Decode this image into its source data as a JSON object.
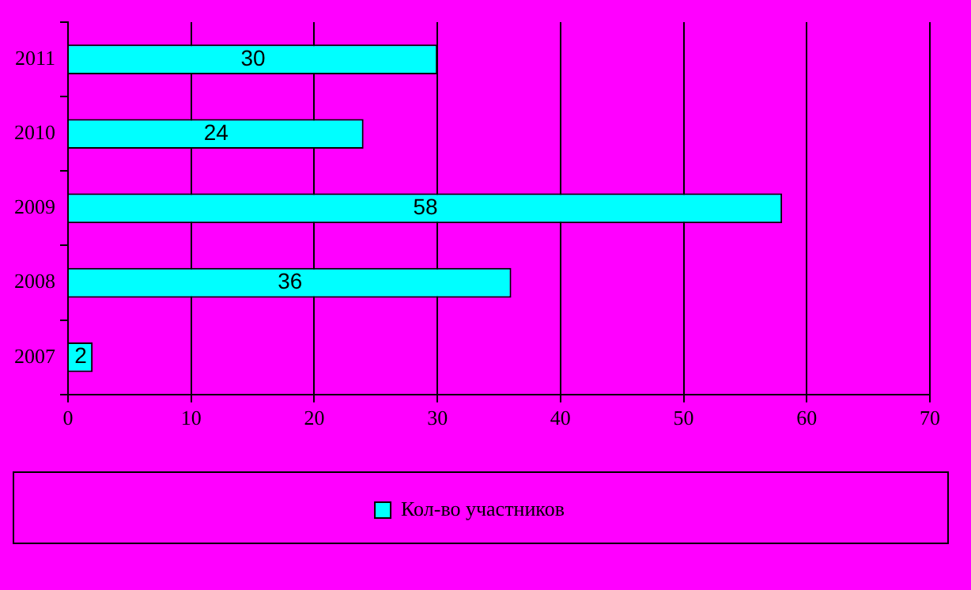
{
  "chart_data": {
    "type": "bar",
    "orientation": "horizontal",
    "categories": [
      "2011",
      "2010",
      "2009",
      "2008",
      "2007"
    ],
    "series": [
      {
        "name": "Кол-во участников",
        "color": "#00ffff",
        "values": [
          30,
          24,
          58,
          36,
          2
        ]
      }
    ],
    "xlim": [
      0,
      70
    ],
    "xticks": [
      0,
      10,
      20,
      30,
      40,
      50,
      60,
      70
    ],
    "grid": "x",
    "legend": "bottom",
    "data_labels": true
  }
}
